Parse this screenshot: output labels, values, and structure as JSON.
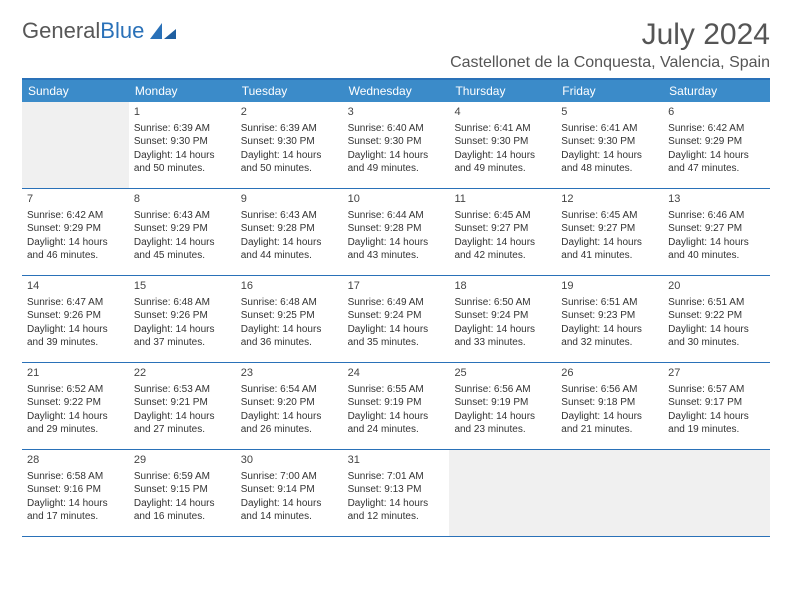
{
  "brand": {
    "part1": "General",
    "part2": "Blue"
  },
  "title": "July 2024",
  "location": "Castellonet de la Conquesta, Valencia, Spain",
  "colors": {
    "header_bar": "#3b8bc9",
    "border": "#2a71b8",
    "empty_bg": "#f0f0f0",
    "text": "#333333"
  },
  "days_of_week": [
    "Sunday",
    "Monday",
    "Tuesday",
    "Wednesday",
    "Thursday",
    "Friday",
    "Saturday"
  ],
  "weeks": [
    [
      null,
      {
        "n": "1",
        "sr": "Sunrise: 6:39 AM",
        "ss": "Sunset: 9:30 PM",
        "dl": "Daylight: 14 hours and 50 minutes."
      },
      {
        "n": "2",
        "sr": "Sunrise: 6:39 AM",
        "ss": "Sunset: 9:30 PM",
        "dl": "Daylight: 14 hours and 50 minutes."
      },
      {
        "n": "3",
        "sr": "Sunrise: 6:40 AM",
        "ss": "Sunset: 9:30 PM",
        "dl": "Daylight: 14 hours and 49 minutes."
      },
      {
        "n": "4",
        "sr": "Sunrise: 6:41 AM",
        "ss": "Sunset: 9:30 PM",
        "dl": "Daylight: 14 hours and 49 minutes."
      },
      {
        "n": "5",
        "sr": "Sunrise: 6:41 AM",
        "ss": "Sunset: 9:30 PM",
        "dl": "Daylight: 14 hours and 48 minutes."
      },
      {
        "n": "6",
        "sr": "Sunrise: 6:42 AM",
        "ss": "Sunset: 9:29 PM",
        "dl": "Daylight: 14 hours and 47 minutes."
      }
    ],
    [
      {
        "n": "7",
        "sr": "Sunrise: 6:42 AM",
        "ss": "Sunset: 9:29 PM",
        "dl": "Daylight: 14 hours and 46 minutes."
      },
      {
        "n": "8",
        "sr": "Sunrise: 6:43 AM",
        "ss": "Sunset: 9:29 PM",
        "dl": "Daylight: 14 hours and 45 minutes."
      },
      {
        "n": "9",
        "sr": "Sunrise: 6:43 AM",
        "ss": "Sunset: 9:28 PM",
        "dl": "Daylight: 14 hours and 44 minutes."
      },
      {
        "n": "10",
        "sr": "Sunrise: 6:44 AM",
        "ss": "Sunset: 9:28 PM",
        "dl": "Daylight: 14 hours and 43 minutes."
      },
      {
        "n": "11",
        "sr": "Sunrise: 6:45 AM",
        "ss": "Sunset: 9:27 PM",
        "dl": "Daylight: 14 hours and 42 minutes."
      },
      {
        "n": "12",
        "sr": "Sunrise: 6:45 AM",
        "ss": "Sunset: 9:27 PM",
        "dl": "Daylight: 14 hours and 41 minutes."
      },
      {
        "n": "13",
        "sr": "Sunrise: 6:46 AM",
        "ss": "Sunset: 9:27 PM",
        "dl": "Daylight: 14 hours and 40 minutes."
      }
    ],
    [
      {
        "n": "14",
        "sr": "Sunrise: 6:47 AM",
        "ss": "Sunset: 9:26 PM",
        "dl": "Daylight: 14 hours and 39 minutes."
      },
      {
        "n": "15",
        "sr": "Sunrise: 6:48 AM",
        "ss": "Sunset: 9:26 PM",
        "dl": "Daylight: 14 hours and 37 minutes."
      },
      {
        "n": "16",
        "sr": "Sunrise: 6:48 AM",
        "ss": "Sunset: 9:25 PM",
        "dl": "Daylight: 14 hours and 36 minutes."
      },
      {
        "n": "17",
        "sr": "Sunrise: 6:49 AM",
        "ss": "Sunset: 9:24 PM",
        "dl": "Daylight: 14 hours and 35 minutes."
      },
      {
        "n": "18",
        "sr": "Sunrise: 6:50 AM",
        "ss": "Sunset: 9:24 PM",
        "dl": "Daylight: 14 hours and 33 minutes."
      },
      {
        "n": "19",
        "sr": "Sunrise: 6:51 AM",
        "ss": "Sunset: 9:23 PM",
        "dl": "Daylight: 14 hours and 32 minutes."
      },
      {
        "n": "20",
        "sr": "Sunrise: 6:51 AM",
        "ss": "Sunset: 9:22 PM",
        "dl": "Daylight: 14 hours and 30 minutes."
      }
    ],
    [
      {
        "n": "21",
        "sr": "Sunrise: 6:52 AM",
        "ss": "Sunset: 9:22 PM",
        "dl": "Daylight: 14 hours and 29 minutes."
      },
      {
        "n": "22",
        "sr": "Sunrise: 6:53 AM",
        "ss": "Sunset: 9:21 PM",
        "dl": "Daylight: 14 hours and 27 minutes."
      },
      {
        "n": "23",
        "sr": "Sunrise: 6:54 AM",
        "ss": "Sunset: 9:20 PM",
        "dl": "Daylight: 14 hours and 26 minutes."
      },
      {
        "n": "24",
        "sr": "Sunrise: 6:55 AM",
        "ss": "Sunset: 9:19 PM",
        "dl": "Daylight: 14 hours and 24 minutes."
      },
      {
        "n": "25",
        "sr": "Sunrise: 6:56 AM",
        "ss": "Sunset: 9:19 PM",
        "dl": "Daylight: 14 hours and 23 minutes."
      },
      {
        "n": "26",
        "sr": "Sunrise: 6:56 AM",
        "ss": "Sunset: 9:18 PM",
        "dl": "Daylight: 14 hours and 21 minutes."
      },
      {
        "n": "27",
        "sr": "Sunrise: 6:57 AM",
        "ss": "Sunset: 9:17 PM",
        "dl": "Daylight: 14 hours and 19 minutes."
      }
    ],
    [
      {
        "n": "28",
        "sr": "Sunrise: 6:58 AM",
        "ss": "Sunset: 9:16 PM",
        "dl": "Daylight: 14 hours and 17 minutes."
      },
      {
        "n": "29",
        "sr": "Sunrise: 6:59 AM",
        "ss": "Sunset: 9:15 PM",
        "dl": "Daylight: 14 hours and 16 minutes."
      },
      {
        "n": "30",
        "sr": "Sunrise: 7:00 AM",
        "ss": "Sunset: 9:14 PM",
        "dl": "Daylight: 14 hours and 14 minutes."
      },
      {
        "n": "31",
        "sr": "Sunrise: 7:01 AM",
        "ss": "Sunset: 9:13 PM",
        "dl": "Daylight: 14 hours and 12 minutes."
      },
      null,
      null,
      null
    ]
  ]
}
